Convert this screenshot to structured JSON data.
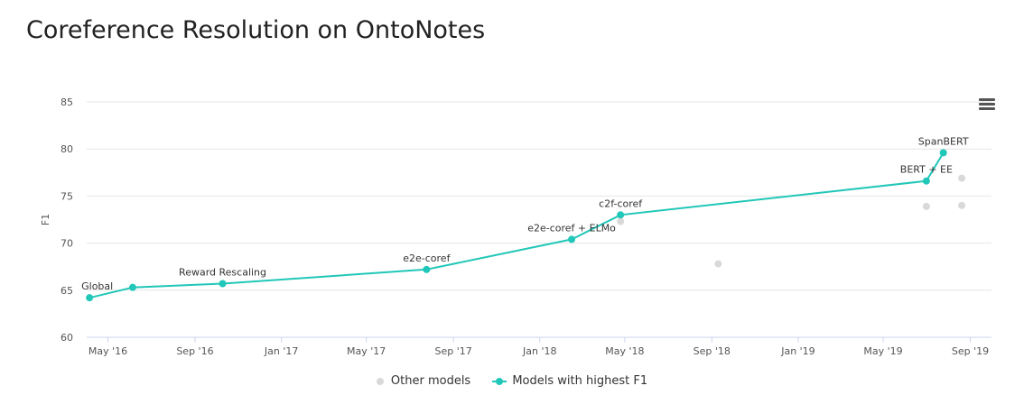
{
  "header": {
    "title": "Coreference Resolution on OntoNotes"
  },
  "icons": {
    "menu": "hamburger-menu-icon"
  },
  "colors": {
    "best": "#21c7b8",
    "other": "#d9d9d9",
    "grid": "#e6e6e6"
  },
  "legend": {
    "other_label": "Other models",
    "best_label": "Models with highest F1"
  },
  "chart_data": {
    "type": "scatter",
    "title": "Coreference Resolution on OntoNotes",
    "xlabel": "",
    "ylabel": "F1",
    "ylim": [
      60,
      85
    ],
    "yticks": [
      60,
      65,
      70,
      75,
      80,
      85
    ],
    "xlim": [
      "2016-04-01",
      "2019-10-01"
    ],
    "xticks": [
      {
        "date": "2016-05-01",
        "label": "May '16"
      },
      {
        "date": "2016-09-01",
        "label": "Sep '16"
      },
      {
        "date": "2017-01-01",
        "label": "Jan '17"
      },
      {
        "date": "2017-05-01",
        "label": "May '17"
      },
      {
        "date": "2017-09-01",
        "label": "Sep '17"
      },
      {
        "date": "2018-01-01",
        "label": "Jan '18"
      },
      {
        "date": "2018-05-01",
        "label": "May '18"
      },
      {
        "date": "2018-09-01",
        "label": "Sep '18"
      },
      {
        "date": "2019-01-01",
        "label": "Jan '19"
      },
      {
        "date": "2019-05-01",
        "label": "May '19"
      },
      {
        "date": "2019-09-01",
        "label": "Sep '19"
      }
    ],
    "grid": true,
    "legend_position": "bottom-center",
    "series": [
      {
        "name": "Other models",
        "values": [
          {
            "date": "2018-04-25",
            "y": 72.3
          },
          {
            "date": "2018-09-10",
            "y": 67.8
          },
          {
            "date": "2019-07-01",
            "y": 73.9
          },
          {
            "date": "2019-08-20",
            "y": 74.0
          },
          {
            "date": "2019-08-20",
            "y": 76.9
          }
        ]
      },
      {
        "name": "Models with highest F1",
        "values": [
          {
            "date": "2016-04-05",
            "y": 64.2,
            "label": "Global"
          },
          {
            "date": "2016-06-05",
            "y": 65.3,
            "label": ""
          },
          {
            "date": "2016-10-10",
            "y": 65.7,
            "label": "Reward Rescaling"
          },
          {
            "date": "2017-07-25",
            "y": 67.2,
            "label": "e2e-coref"
          },
          {
            "date": "2018-02-15",
            "y": 70.4,
            "label": "e2e-coref + ELMo"
          },
          {
            "date": "2018-04-25",
            "y": 73.0,
            "label": "c2f-coref"
          },
          {
            "date": "2019-07-01",
            "y": 76.6,
            "label": "BERT + EE"
          },
          {
            "date": "2019-07-25",
            "y": 79.6,
            "label": "SpanBERT"
          }
        ]
      }
    ]
  }
}
